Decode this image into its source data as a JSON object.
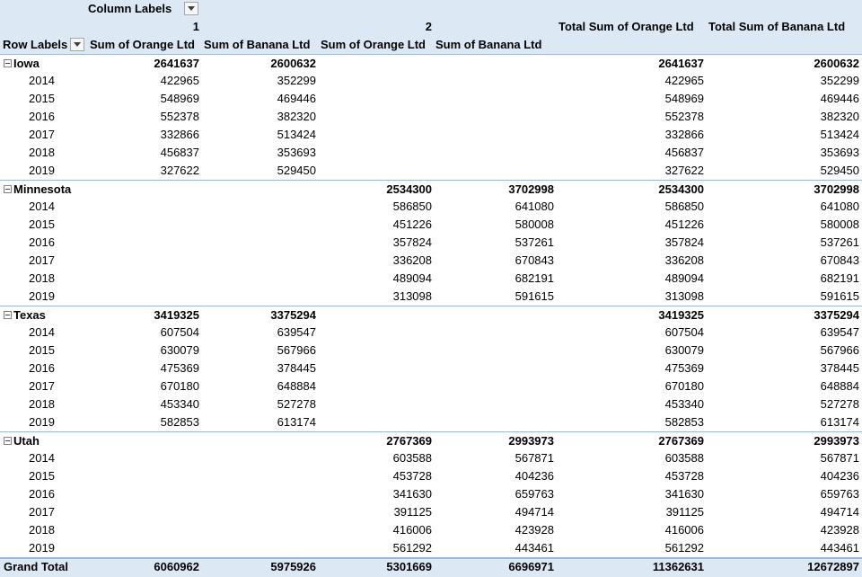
{
  "pivot": {
    "column_labels_caption": "Column Labels",
    "row_labels_caption": "Row Labels",
    "column_groups": [
      "1",
      "2"
    ],
    "measure_headers": [
      "Sum of Orange Ltd",
      "Sum of Banana Ltd",
      "Sum of Orange Ltd",
      "Sum of Banana Ltd"
    ],
    "total_headers": [
      "Total Sum of Orange Ltd",
      "Total Sum of Banana Ltd"
    ],
    "groups": [
      {
        "name": "Iowa",
        "totals": [
          "2641637",
          "2600632",
          "",
          "",
          "2641637",
          "2600632"
        ],
        "rows": [
          {
            "year": "2014",
            "values": [
              "422965",
              "352299",
              "",
              "",
              "422965",
              "352299"
            ]
          },
          {
            "year": "2015",
            "values": [
              "548969",
              "469446",
              "",
              "",
              "548969",
              "469446"
            ]
          },
          {
            "year": "2016",
            "values": [
              "552378",
              "382320",
              "",
              "",
              "552378",
              "382320"
            ]
          },
          {
            "year": "2017",
            "values": [
              "332866",
              "513424",
              "",
              "",
              "332866",
              "513424"
            ]
          },
          {
            "year": "2018",
            "values": [
              "456837",
              "353693",
              "",
              "",
              "456837",
              "353693"
            ]
          },
          {
            "year": "2019",
            "values": [
              "327622",
              "529450",
              "",
              "",
              "327622",
              "529450"
            ]
          }
        ]
      },
      {
        "name": "Minnesota",
        "totals": [
          "",
          "",
          "2534300",
          "3702998",
          "2534300",
          "3702998"
        ],
        "rows": [
          {
            "year": "2014",
            "values": [
              "",
              "",
              "586850",
              "641080",
              "586850",
              "641080"
            ]
          },
          {
            "year": "2015",
            "values": [
              "",
              "",
              "451226",
              "580008",
              "451226",
              "580008"
            ]
          },
          {
            "year": "2016",
            "values": [
              "",
              "",
              "357824",
              "537261",
              "357824",
              "537261"
            ]
          },
          {
            "year": "2017",
            "values": [
              "",
              "",
              "336208",
              "670843",
              "336208",
              "670843"
            ]
          },
          {
            "year": "2018",
            "values": [
              "",
              "",
              "489094",
              "682191",
              "489094",
              "682191"
            ]
          },
          {
            "year": "2019",
            "values": [
              "",
              "",
              "313098",
              "591615",
              "313098",
              "591615"
            ]
          }
        ]
      },
      {
        "name": "Texas",
        "totals": [
          "3419325",
          "3375294",
          "",
          "",
          "3419325",
          "3375294"
        ],
        "rows": [
          {
            "year": "2014",
            "values": [
              "607504",
              "639547",
              "",
              "",
              "607504",
              "639547"
            ]
          },
          {
            "year": "2015",
            "values": [
              "630079",
              "567966",
              "",
              "",
              "630079",
              "567966"
            ]
          },
          {
            "year": "2016",
            "values": [
              "475369",
              "378445",
              "",
              "",
              "475369",
              "378445"
            ]
          },
          {
            "year": "2017",
            "values": [
              "670180",
              "648884",
              "",
              "",
              "670180",
              "648884"
            ]
          },
          {
            "year": "2018",
            "values": [
              "453340",
              "527278",
              "",
              "",
              "453340",
              "527278"
            ]
          },
          {
            "year": "2019",
            "values": [
              "582853",
              "613174",
              "",
              "",
              "582853",
              "613174"
            ]
          }
        ]
      },
      {
        "name": "Utah",
        "totals": [
          "",
          "",
          "2767369",
          "2993973",
          "2767369",
          "2993973"
        ],
        "rows": [
          {
            "year": "2014",
            "values": [
              "",
              "",
              "603588",
              "567871",
              "603588",
              "567871"
            ]
          },
          {
            "year": "2015",
            "values": [
              "",
              "",
              "453728",
              "404236",
              "453728",
              "404236"
            ]
          },
          {
            "year": "2016",
            "values": [
              "",
              "",
              "341630",
              "659763",
              "341630",
              "659763"
            ]
          },
          {
            "year": "2017",
            "values": [
              "",
              "",
              "391125",
              "494714",
              "391125",
              "494714"
            ]
          },
          {
            "year": "2018",
            "values": [
              "",
              "",
              "416006",
              "423928",
              "416006",
              "423928"
            ]
          },
          {
            "year": "2019",
            "values": [
              "",
              "",
              "561292",
              "443461",
              "561292",
              "443461"
            ]
          }
        ]
      }
    ],
    "grand_total": {
      "label": "Grand Total",
      "values": [
        "6060962",
        "5975926",
        "5301669",
        "6696971",
        "11362631",
        "12672897"
      ]
    }
  },
  "colors": {
    "header_background": "#dde8f5",
    "border": "#9bb7d9"
  },
  "icons": {
    "filter_dropdown": "chevron-down-icon",
    "collapse_toggle": "minus-box-icon"
  }
}
